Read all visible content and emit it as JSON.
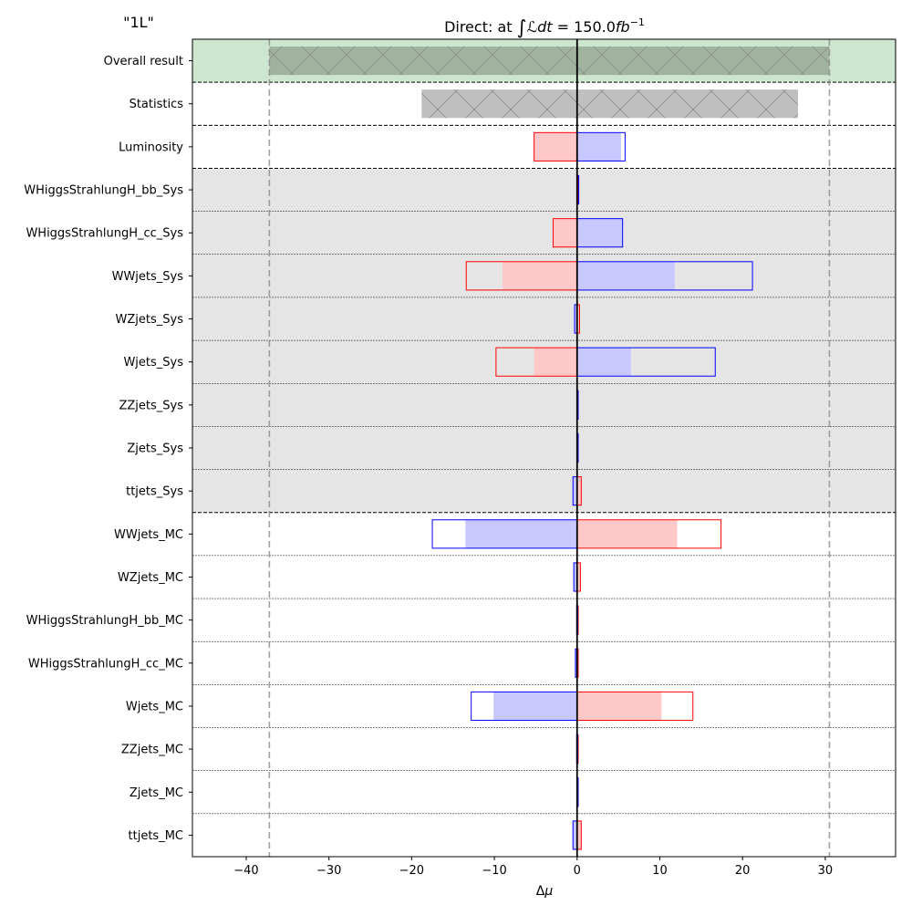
{
  "chart_data": {
    "type": "bar",
    "orientation": "horizontal",
    "corner_label": "\"1L\"",
    "title_text": "Direct: at ",
    "title_math_int": "∫",
    "title_math_L": "ℒ",
    "title_math_dt": "dt",
    "title_math_eq": " = 150.0",
    "title_math_fb": "fb",
    "title_math_exp": "−1",
    "luminosity_fb": 150.0,
    "xlabel_delta": "Δ",
    "xlabel_mu": "μ",
    "xlim": [
      -46.5,
      38.5
    ],
    "x_ticks": [
      -40,
      -30,
      -20,
      -10,
      0,
      10,
      20,
      30
    ],
    "x_tick_labels": [
      "−40",
      "−30",
      "−20",
      "−10",
      "0",
      "10",
      "20",
      "30"
    ],
    "reference_lines": [
      -37.2,
      30.5
    ],
    "colors": {
      "overall_band": "#cde6cf",
      "overall_bar": "#9fb39f",
      "stat_bar": "#bfbfbf",
      "group_shade": "#e5e5e5",
      "down_fill": "#ffc8c8",
      "up_fill": "#c8c8ff",
      "down_edge": "#ff0000",
      "up_edge": "#0000ff"
    },
    "rows": [
      {
        "label": "Overall result",
        "kind": "total",
        "low": -37.2,
        "high": 30.5
      },
      {
        "label": "Statistics",
        "kind": "stat",
        "low": -18.8,
        "high": 26.7
      },
      {
        "label": "Luminosity",
        "kind": "sys",
        "red": {
          "outer": -5.2,
          "inner": -5.2
        },
        "blue": {
          "outer": 5.8,
          "inner": 5.3
        }
      },
      {
        "label": "WHiggsStrahlungH_bb_Sys",
        "kind": "sys",
        "red": {
          "outer": 0.1,
          "inner": 0.1
        },
        "blue": {
          "outer": 0.2,
          "inner": 0.2
        }
      },
      {
        "label": "WHiggsStrahlungH_cc_Sys",
        "kind": "sys",
        "red": {
          "outer": -2.9,
          "inner": -2.9
        },
        "blue": {
          "outer": 5.5,
          "inner": 5.5
        }
      },
      {
        "label": "WWjets_Sys",
        "kind": "sys",
        "red": {
          "outer": -13.4,
          "inner": -9.0
        },
        "blue": {
          "outer": 21.2,
          "inner": 11.8
        }
      },
      {
        "label": "WZjets_Sys",
        "kind": "sys",
        "red": {
          "outer": 0.3,
          "inner": 0.3
        },
        "blue": {
          "outer": -0.3,
          "inner": -0.3
        }
      },
      {
        "label": "Wjets_Sys",
        "kind": "sys",
        "red": {
          "outer": -9.8,
          "inner": -5.2
        },
        "blue": {
          "outer": 16.7,
          "inner": 6.5
        }
      },
      {
        "label": "ZZjets_Sys",
        "kind": "sys",
        "red": {
          "outer": 0.05,
          "inner": 0.05
        },
        "blue": {
          "outer": 0.05,
          "inner": 0.05
        }
      },
      {
        "label": "Zjets_Sys",
        "kind": "sys",
        "red": {
          "outer": 0.05,
          "inner": 0.05
        },
        "blue": {
          "outer": 0.05,
          "inner": 0.05
        }
      },
      {
        "label": "ttjets_Sys",
        "kind": "sys",
        "red": {
          "outer": 0.5,
          "inner": 0.5
        },
        "blue": {
          "outer": -0.5,
          "inner": -0.5
        }
      },
      {
        "label": "WWjets_MC",
        "kind": "sys",
        "red": {
          "outer": 17.4,
          "inner": 12.1
        },
        "blue": {
          "outer": -17.5,
          "inner": -13.5
        }
      },
      {
        "label": "WZjets_MC",
        "kind": "sys",
        "red": {
          "outer": 0.4,
          "inner": 0.4
        },
        "blue": {
          "outer": -0.4,
          "inner": -0.4
        }
      },
      {
        "label": "WHiggsStrahlungH_bb_MC",
        "kind": "sys",
        "red": {
          "outer": 0.05,
          "inner": 0.05
        },
        "blue": {
          "outer": -0.05,
          "inner": -0.05
        }
      },
      {
        "label": "WHiggsStrahlungH_cc_MC",
        "kind": "sys",
        "red": {
          "outer": 0.1,
          "inner": 0.1
        },
        "blue": {
          "outer": -0.2,
          "inner": -0.2
        }
      },
      {
        "label": "Wjets_MC",
        "kind": "sys",
        "red": {
          "outer": 14.0,
          "inner": 10.2
        },
        "blue": {
          "outer": -12.8,
          "inner": -10.1
        }
      },
      {
        "label": "ZZjets_MC",
        "kind": "sys",
        "red": {
          "outer": 0.05,
          "inner": 0.05
        },
        "blue": {
          "outer": -0.05,
          "inner": -0.05
        }
      },
      {
        "label": "Zjets_MC",
        "kind": "sys",
        "red": {
          "outer": 0.1,
          "inner": 0.1
        },
        "blue": {
          "outer": 0.1,
          "inner": 0.1
        }
      },
      {
        "label": "ttjets_MC",
        "kind": "sys",
        "red": {
          "outer": 0.5,
          "inner": 0.5
        },
        "blue": {
          "outer": -0.5,
          "inner": -0.5
        }
      }
    ],
    "shaded_group_rows": [
      3,
      10
    ],
    "dashed_separators_after": [
      0,
      1,
      2,
      10
    ]
  }
}
